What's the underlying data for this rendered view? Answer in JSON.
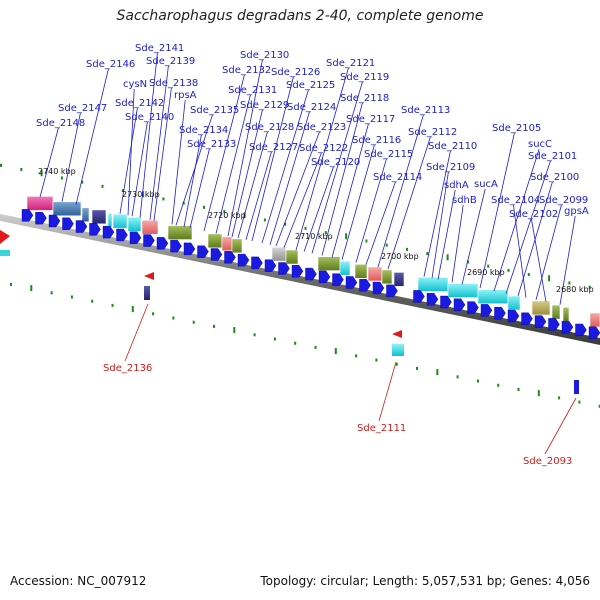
{
  "title": "Saccharophagus degradans 2-40, complete genome",
  "footer": {
    "accession": "Accession: NC_007912",
    "summary": "Topology: circular; Length: 5,057,531 bp; Genes: 4,056"
  },
  "colors": {
    "forward_label": "#1c1ccf",
    "reverse_label": "#d01b1b",
    "backbone": "#7a7a7a",
    "ticks": "#1a8a1a",
    "arrow_forward": "#1a1ae0",
    "arrow_reverse": "#e01a1a"
  },
  "kbp_labels": [
    "2740 kbp",
    "2730 kbp",
    "2720 kbp",
    "2710 kbp",
    "2700 kbp",
    "2690 kbp",
    "2680 kbp"
  ],
  "forward_genes": [
    "Sde_2148",
    "Sde_2147",
    "Sde_2146",
    "Sde_2142",
    "cysN",
    "Sde_2141",
    "Sde_2140",
    "Sde_2139",
    "Sde_2138",
    "rpsA",
    "Sde_2135",
    "Sde_2134",
    "Sde_2133",
    "Sde_2132",
    "Sde_2131",
    "Sde_2130",
    "Sde_2129",
    "Sde_2128",
    "Sde_2127",
    "Sde_2126",
    "Sde_2125",
    "Sde_2124",
    "Sde_2123",
    "Sde_2122",
    "Sde_2121",
    "Sde_2120",
    "Sde_2119",
    "Sde_2118",
    "Sde_2117",
    "Sde_2116",
    "Sde_2115",
    "Sde_2114",
    "Sde_2113",
    "Sde_2112",
    "Sde_2110",
    "Sde_2109",
    "sdhA",
    "sdhB",
    "sucA",
    "Sde_2105",
    "sucC",
    "Sde_2101",
    "Sde_2100",
    "Sde_2104",
    "Sde_2099",
    "Sde_2102",
    "gpsA"
  ],
  "reverse_genes": [
    "Sde_2136",
    "Sde_2111",
    "Sde_2093"
  ]
}
